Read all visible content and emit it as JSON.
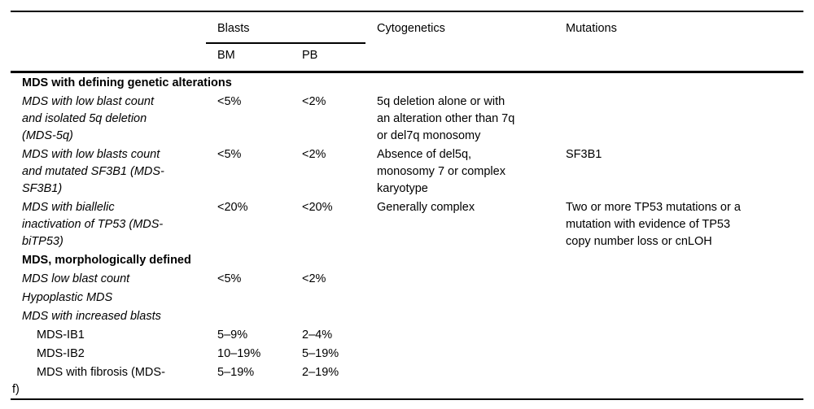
{
  "table": {
    "header": {
      "blasts_group": "Blasts",
      "col_bm": "BM",
      "col_pb": "PB",
      "col_cytogenetics": "Cytogenetics",
      "col_mutations": "Mutations"
    },
    "rows": [
      {
        "type": "section",
        "label": "MDS with defining genetic alterations"
      },
      {
        "type": "entry",
        "label": "MDS with low blast count\nand isolated 5q deletion\n(MDS-5q)",
        "bm": "<5%",
        "pb": "<2%",
        "cytogenetics": "5q deletion alone or with\nan alteration other than 7q\nor del7q monosomy",
        "mutations": ""
      },
      {
        "type": "entry",
        "label": "MDS with low blasts count\nand mutated SF3B1 (MDS-\nSF3B1)",
        "bm": "<5%",
        "pb": "<2%",
        "cytogenetics": "Absence of del5q,\nmonosomy 7 or complex\nkaryotype",
        "mutations": "SF3B1"
      },
      {
        "type": "entry",
        "label": "MDS with biallelic\ninactivation of TP53 (MDS-\nbiTP53)",
        "bm": "<20%",
        "pb": "<20%",
        "cytogenetics": "Generally complex",
        "mutations": "Two or more TP53 mutations or a\nmutation with evidence of TP53\ncopy number loss or cnLOH"
      },
      {
        "type": "section",
        "label": "MDS, morphologically defined"
      },
      {
        "type": "entry",
        "label": "MDS low blast count",
        "bm": "<5%",
        "pb": "<2%",
        "cytogenetics": "",
        "mutations": ""
      },
      {
        "type": "entry",
        "label": "Hypoplastic MDS",
        "bm": "",
        "pb": "",
        "cytogenetics": "",
        "mutations": ""
      },
      {
        "type": "entry",
        "label": "MDS with increased blasts",
        "bm": "",
        "pb": "",
        "cytogenetics": "",
        "mutations": ""
      },
      {
        "type": "sub",
        "label": "MDS-IB1",
        "bm": "5–9%",
        "pb": "2–4%",
        "cytogenetics": "",
        "mutations": ""
      },
      {
        "type": "sub",
        "label": "MDS-IB2",
        "bm": "10–19%",
        "pb": "5–19%",
        "cytogenetics": "",
        "mutations": ""
      },
      {
        "type": "sub-hang",
        "label": "MDS with fibrosis (MDS-\nf)",
        "bm": "5–19%",
        "pb": "2–19%",
        "cytogenetics": "",
        "mutations": ""
      }
    ],
    "colors": {
      "text": "#000000",
      "background": "#ffffff",
      "rule": "#000000"
    }
  }
}
